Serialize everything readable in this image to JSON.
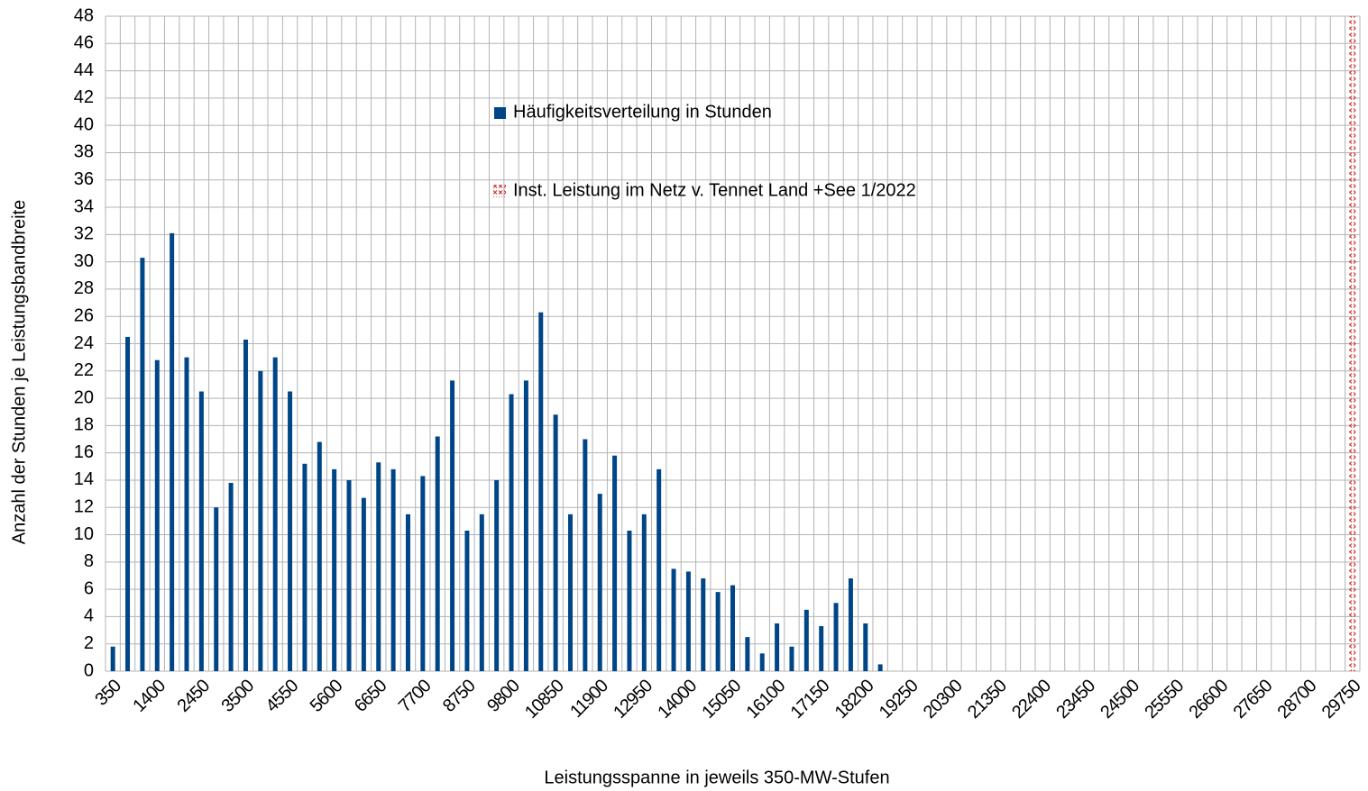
{
  "chart_data": {
    "type": "bar",
    "x_label": "Leistungsspanne in jeweils 350-MW-Stufen",
    "y_label": "Anzahl der Stunden je Leistungsbandbreite",
    "categories": [
      "350",
      null,
      null,
      "1400",
      null,
      null,
      "2450",
      null,
      null,
      "3500",
      null,
      null,
      "4550",
      null,
      null,
      "5600",
      null,
      null,
      "6650",
      null,
      null,
      "7700",
      null,
      null,
      "8750",
      null,
      null,
      "9800",
      null,
      null,
      "10850",
      null,
      null,
      "11900",
      null,
      null,
      "12950",
      null,
      null,
      "14000",
      null,
      null,
      "15050",
      null,
      null,
      "16100",
      null,
      null,
      "17150",
      null,
      null,
      "18200",
      null,
      null,
      "19250",
      null,
      null,
      "20300",
      null,
      null,
      "21350",
      null,
      null,
      "22400",
      null,
      null,
      "23450",
      null,
      null,
      "24500",
      null,
      null,
      "25550",
      null,
      null,
      "26600",
      null,
      null,
      "27650",
      null,
      null,
      "28700",
      null,
      null,
      "29750"
    ],
    "series": [
      {
        "name": "Häufigkeitsverteilung in Stunden",
        "color": "#004586",
        "values": [
          1.8,
          24.5,
          30.3,
          22.8,
          32.1,
          23.0,
          20.5,
          12.0,
          13.8,
          24.3,
          22.0,
          23.0,
          20.5,
          15.2,
          16.8,
          14.8,
          14.0,
          12.7,
          15.3,
          14.8,
          11.5,
          14.3,
          17.2,
          21.3,
          10.3,
          11.5,
          14.0,
          20.3,
          21.3,
          26.3,
          18.8,
          11.5,
          17.0,
          13.0,
          15.8,
          10.3,
          11.5,
          14.8,
          7.5,
          7.3,
          6.8,
          5.8,
          6.3,
          2.5,
          1.3,
          3.5,
          1.8,
          4.5,
          3.3,
          5.0,
          6.8,
          3.5,
          0.5,
          0,
          0,
          0,
          0,
          0,
          0,
          0,
          0,
          0,
          0,
          0,
          0,
          0,
          0,
          0,
          0,
          0,
          0,
          0,
          0,
          0,
          0,
          0,
          0,
          0,
          0,
          0,
          0,
          0,
          0,
          0,
          0
        ]
      },
      {
        "name": "Inst. Leistung im Netz v. Tennet  Land +See 1/2022",
        "color": "#c9211e",
        "values": [
          null,
          null,
          null,
          null,
          null,
          null,
          null,
          null,
          null,
          null,
          null,
          null,
          null,
          null,
          null,
          null,
          null,
          null,
          null,
          null,
          null,
          null,
          null,
          null,
          null,
          null,
          null,
          null,
          null,
          null,
          null,
          null,
          null,
          null,
          null,
          null,
          null,
          null,
          null,
          null,
          null,
          null,
          null,
          null,
          null,
          null,
          null,
          null,
          null,
          null,
          null,
          null,
          null,
          null,
          null,
          null,
          null,
          null,
          null,
          null,
          null,
          null,
          null,
          null,
          null,
          null,
          null,
          null,
          null,
          null,
          null,
          null,
          null,
          null,
          null,
          null,
          null,
          null,
          null,
          null,
          null,
          null,
          null,
          null,
          48
        ]
      }
    ],
    "ylim": [
      0,
      48
    ],
    "yticks": [
      0,
      2,
      4,
      6,
      8,
      10,
      12,
      14,
      16,
      18,
      20,
      22,
      24,
      26,
      28,
      30,
      32,
      34,
      36,
      38,
      40,
      42,
      44,
      46,
      48
    ],
    "grid": true
  }
}
